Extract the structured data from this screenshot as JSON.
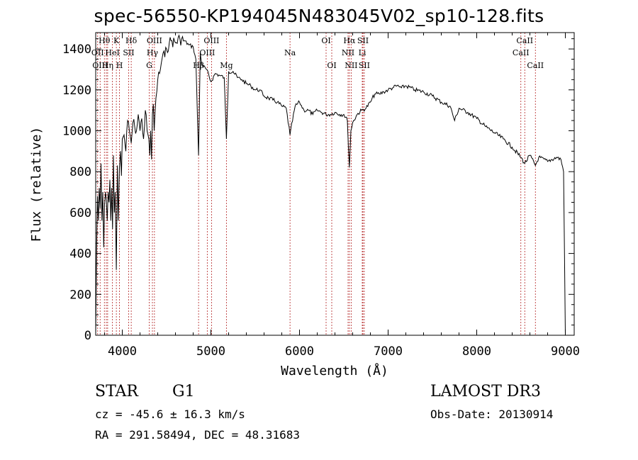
{
  "title": "spec-56550-KP194045N483045V02_sp10-128.fits",
  "info": {
    "object_class": "STAR",
    "subclass": "G1",
    "survey": "LAMOST DR3",
    "cz": "cz = -45.6 ± 16.3 km/s",
    "obs_date": "Obs-Date: 20130914",
    "coords": "RA = 291.58494, DEC =  48.31683"
  },
  "chart_data": {
    "type": "line",
    "title": "spec-56550-KP194045N483045V02_sp10-128.fits",
    "xlabel": "Wavelength (Å)",
    "ylabel": "Flux (relative)",
    "xlim": [
      3700,
      9100
    ],
    "ylim": [
      0,
      1480
    ],
    "xticks": [
      4000,
      5000,
      6000,
      7000,
      8000,
      9000
    ],
    "yticks": [
      0,
      200,
      400,
      600,
      800,
      1000,
      1200,
      1400
    ],
    "grid": false,
    "series": [
      {
        "x": [
          3700,
          3710,
          3720,
          3730,
          3740,
          3750,
          3760,
          3770,
          3780,
          3790,
          3800,
          3810,
          3820,
          3830,
          3840,
          3850,
          3860,
          3870,
          3880,
          3890,
          3900,
          3910,
          3920,
          3933,
          3945,
          3955,
          3968,
          3980,
          3990,
          4000,
          4020,
          4040,
          4060,
          4080,
          4101,
          4120,
          4140,
          4160,
          4180,
          4200,
          4220,
          4240,
          4260,
          4280,
          4300,
          4310,
          4320,
          4330,
          4340,
          4350,
          4360,
          4380,
          4400,
          4420,
          4440,
          4460,
          4480,
          4500,
          4530,
          4560,
          4600,
          4650,
          4700,
          4750,
          4800,
          4830,
          4861,
          4880,
          4900,
          4950,
          5000,
          5050,
          5100,
          5150,
          5175,
          5200,
          5250,
          5300,
          5350,
          5400,
          5450,
          5500,
          5550,
          5600,
          5650,
          5700,
          5750,
          5800,
          5850,
          5893,
          5950,
          6000,
          6050,
          6100,
          6150,
          6200,
          6250,
          6300,
          6350,
          6400,
          6450,
          6500,
          6540,
          6563,
          6580,
          6600,
          6650,
          6700,
          6750,
          6800,
          6850,
          6900,
          6950,
          7000,
          7050,
          7100,
          7150,
          7200,
          7300,
          7400,
          7500,
          7600,
          7700,
          7750,
          7800,
          7900,
          8000,
          8100,
          8200,
          8300,
          8400,
          8498,
          8542,
          8600,
          8662,
          8700,
          8800,
          8900,
          8950,
          8980,
          9000
        ],
        "values": [
          0,
          430,
          680,
          560,
          720,
          620,
          840,
          560,
          700,
          430,
          640,
          700,
          660,
          560,
          700,
          650,
          760,
          560,
          720,
          520,
          880,
          600,
          700,
          320,
          830,
          560,
          820,
          900,
          780,
          960,
          980,
          900,
          1050,
          1000,
          940,
          1040,
          1020,
          1000,
          1080,
          1000,
          1060,
          960,
          1100,
          1000,
          960,
          880,
          1000,
          860,
          1080,
          1130,
          1000,
          1160,
          1250,
          1280,
          1330,
          1380,
          1360,
          1400,
          1430,
          1440,
          1430,
          1450,
          1440,
          1420,
          1410,
          1350,
          880,
          1380,
          1320,
          1300,
          1240,
          1280,
          1270,
          1260,
          960,
          1290,
          1290,
          1260,
          1250,
          1230,
          1220,
          1200,
          1200,
          1170,
          1160,
          1150,
          1140,
          1120,
          1110,
          980,
          1120,
          1140,
          1100,
          1100,
          1080,
          1100,
          1090,
          1080,
          1080,
          1090,
          1080,
          1080,
          1050,
          820,
          1000,
          1040,
          1080,
          1100,
          1110,
          1140,
          1180,
          1180,
          1190,
          1200,
          1210,
          1220,
          1210,
          1220,
          1200,
          1190,
          1170,
          1140,
          1120,
          1050,
          1110,
          1090,
          1060,
          1020,
          990,
          960,
          920,
          870,
          840,
          880,
          830,
          870,
          850,
          870,
          860,
          800,
          0
        ]
      }
    ],
    "lines": [
      {
        "x": 3722,
        "label": "OII",
        "row": 1
      },
      {
        "x": 3750,
        "label": "OIII",
        "row": 2
      },
      {
        "x": 3798,
        "label": "Hθ",
        "row": 0
      },
      {
        "x": 3820,
        "label": "",
        "row": 0
      },
      {
        "x": 3835,
        "label": "Hη",
        "row": 2
      },
      {
        "x": 3889,
        "label": "HeI",
        "row": 1
      },
      {
        "x": 3933,
        "label": "K",
        "row": 0
      },
      {
        "x": 3968,
        "label": "H",
        "row": 2
      },
      {
        "x": 4072,
        "label": "SII",
        "row": 1
      },
      {
        "x": 4101,
        "label": "Hδ",
        "row": 0
      },
      {
        "x": 4304,
        "label": "G",
        "row": 2
      },
      {
        "x": 4340,
        "label": "Hγ",
        "row": 1
      },
      {
        "x": 4363,
        "label": "OIII",
        "row": 0
      },
      {
        "x": 4861,
        "label": "Hβ",
        "row": 2
      },
      {
        "x": 4959,
        "label": "OIII",
        "row": 1
      },
      {
        "x": 5007,
        "label": "OIII",
        "row": 0
      },
      {
        "x": 5175,
        "label": "Mg",
        "row": 2
      },
      {
        "x": 5893,
        "label": "Na",
        "row": 1
      },
      {
        "x": 6300,
        "label": "OI",
        "row": 0
      },
      {
        "x": 6364,
        "label": "OI",
        "row": 2
      },
      {
        "x": 6548,
        "label": "NII",
        "row": 1
      },
      {
        "x": 6563,
        "label": "Hα",
        "row": 0
      },
      {
        "x": 6583,
        "label": "NII",
        "row": 2
      },
      {
        "x": 6708,
        "label": "Li",
        "row": 1
      },
      {
        "x": 6716,
        "label": "SII",
        "row": 0
      },
      {
        "x": 6731,
        "label": "SII",
        "row": 2
      },
      {
        "x": 8498,
        "label": "CaII",
        "row": 1
      },
      {
        "x": 8542,
        "label": "CaII",
        "row": 0
      },
      {
        "x": 8662,
        "label": "CaII",
        "row": 2
      }
    ]
  }
}
